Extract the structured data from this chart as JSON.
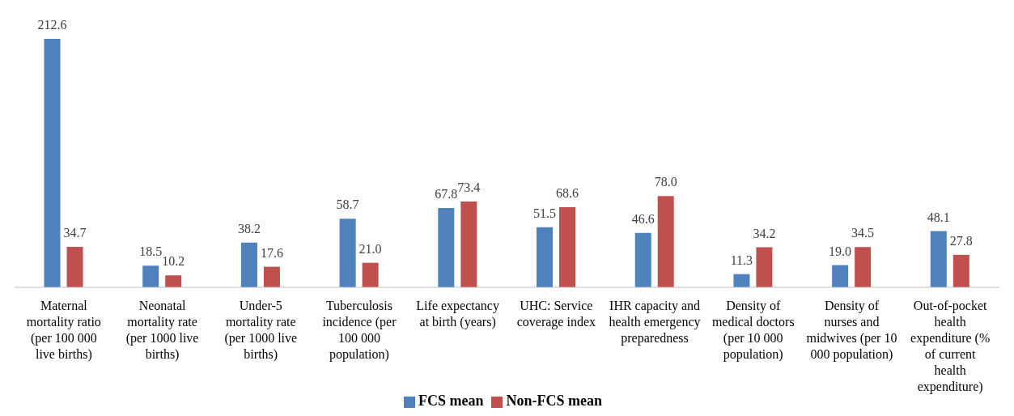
{
  "chart_data": {
    "type": "bar",
    "categories": [
      "Maternal mortality ratio (per 100 000 live births)",
      "Neonatal mortality rate (per 1000 live births)",
      "Under-5 mortality rate (per 1000 live births)",
      "Tuberculosis incidence (per 100 000 population)",
      "Life expectancy at birth (years)",
      "UHC: Service coverage index",
      "IHR capacity and health emergency preparedness",
      "Density of medical doctors (per 10 000 population)",
      "Density of nurses and midwives (per 10 000 population)",
      "Out-of-pocket health expenditure (% of current health expenditure)"
    ],
    "series": [
      {
        "name": "FCS mean",
        "color": "#4f81bd",
        "values": [
          212.6,
          18.5,
          38.2,
          58.7,
          67.8,
          51.5,
          46.6,
          11.3,
          19.0,
          48.1
        ],
        "value_labels": [
          "212.6",
          "18.5",
          "38.2",
          "58.7",
          "67.8",
          "51.5",
          "46.6",
          "11.3",
          "19.0",
          "48.1"
        ]
      },
      {
        "name": "Non-FCS mean",
        "color": "#c0504d",
        "values": [
          34.7,
          10.2,
          17.6,
          21.0,
          73.4,
          68.6,
          78.0,
          34.2,
          34.5,
          27.8
        ],
        "value_labels": [
          "34.7",
          "10.2",
          "17.6",
          "21.0",
          "73.4",
          "68.6",
          "78.0",
          "34.2",
          "34.5",
          "27.8"
        ]
      }
    ],
    "legend": "bottom",
    "grid": false
  }
}
